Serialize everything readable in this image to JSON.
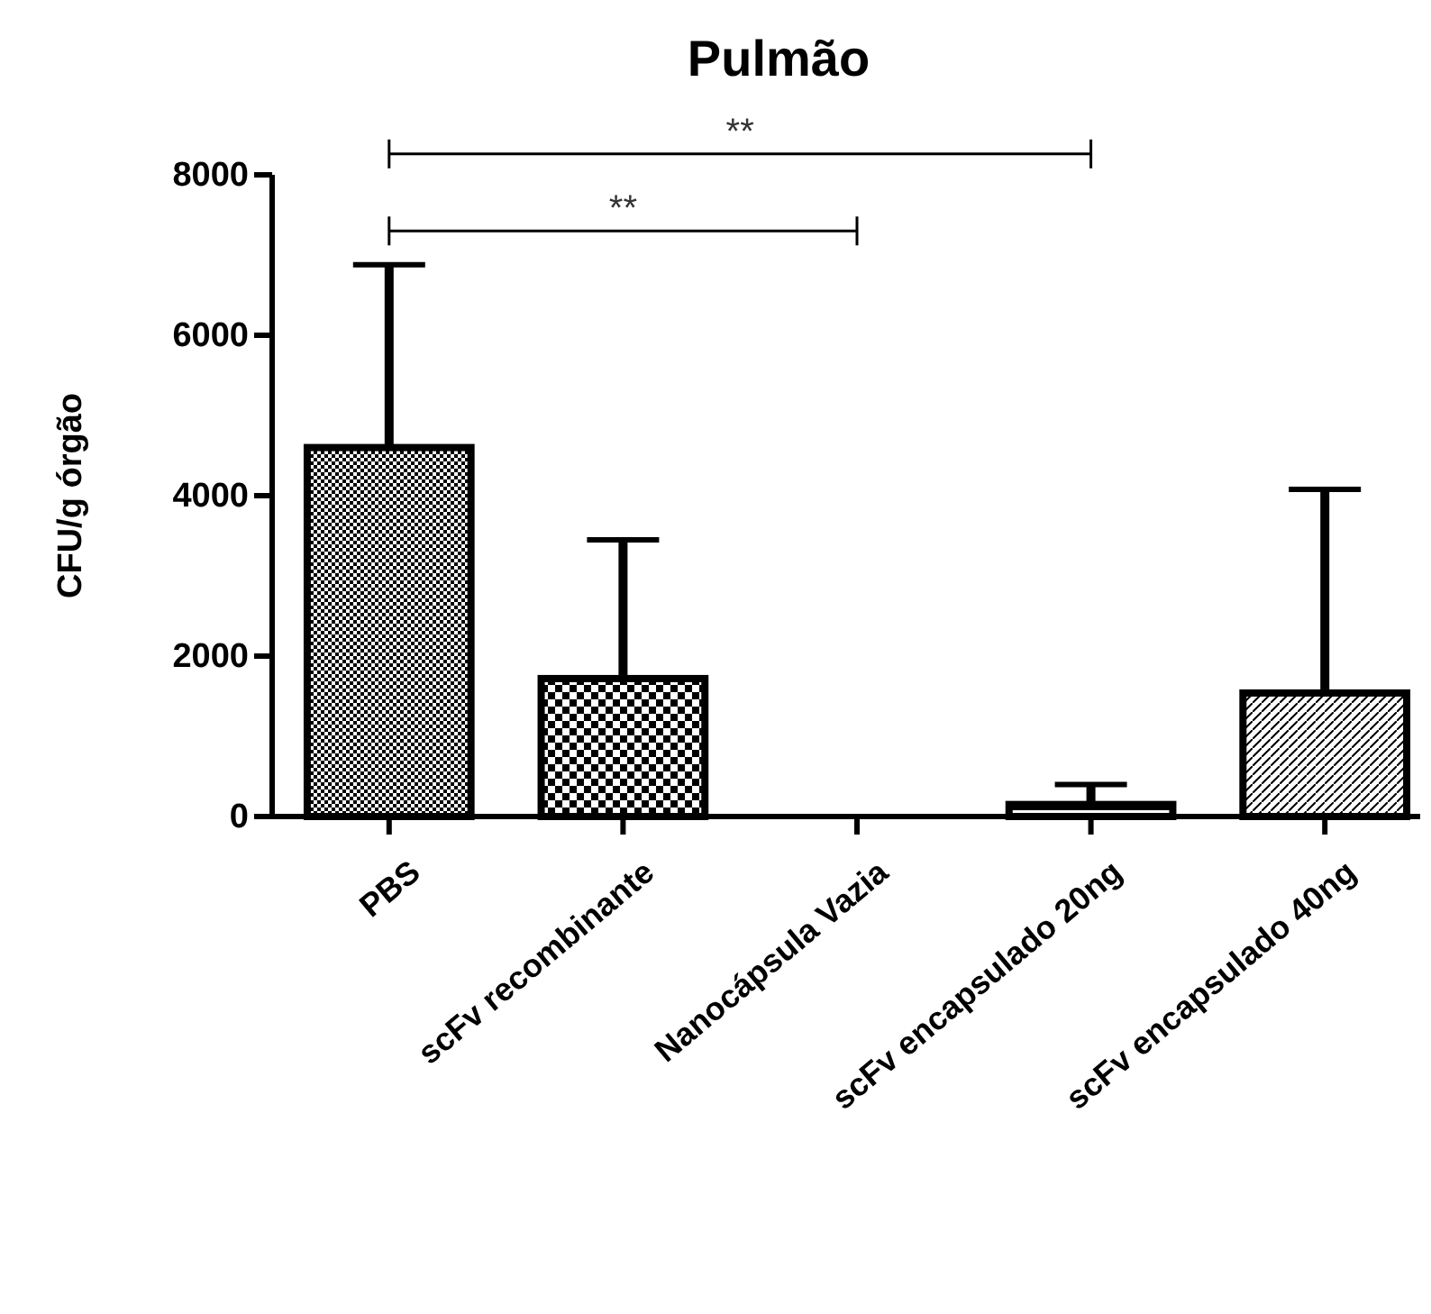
{
  "chart_data": {
    "type": "bar",
    "title": "Pulmão",
    "ylabel": "CFU/g órgão",
    "categories": [
      "PBS",
      "scFv recombinante",
      "Nanocápsula Vazia",
      "scFv encapsulado 20ng",
      "scFv encapsulado 40ng"
    ],
    "values": [
      4600,
      1720,
      0,
      150,
      1540
    ],
    "colors": [
      "#000000",
      "#000000",
      "#000000",
      "#000000",
      "#000000"
    ],
    "errors": [
      [
        4600,
        6880
      ],
      [
        1720,
        3450
      ],
      null,
      [
        150,
        400
      ],
      [
        1540,
        4080
      ]
    ],
    "ylim": [
      0,
      8000
    ],
    "yticks": [
      0,
      2000,
      4000,
      6000,
      8000
    ],
    "grid": false,
    "annotations": [
      "**",
      "**"
    ]
  }
}
